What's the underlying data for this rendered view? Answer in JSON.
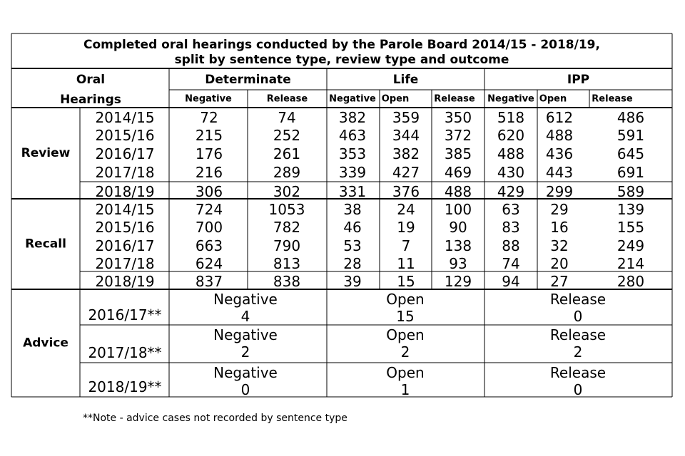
{
  "chart_data": {
    "type": "table",
    "title": [
      "Completed oral hearings conducted by the Parole Board 2014/15 - 2018/19,",
      "split by sentence type, review type and outcome"
    ],
    "corner_header": [
      "Oral",
      "Hearings"
    ],
    "sentence_types": [
      {
        "name": "Determinate",
        "outcomes": [
          "Negative",
          "Release"
        ]
      },
      {
        "name": "Life",
        "outcomes": [
          "Negative",
          "Open",
          "Release"
        ]
      },
      {
        "name": "IPP",
        "outcomes": [
          "Negative",
          "Open",
          "Release"
        ]
      }
    ],
    "groups": [
      {
        "name": "Review",
        "rows": [
          {
            "year": "2014/15",
            "values": [
              72,
              74,
              382,
              359,
              350,
              518,
              612,
              486
            ]
          },
          {
            "year": "2015/16",
            "values": [
              215,
              252,
              463,
              344,
              372,
              620,
              488,
              591
            ]
          },
          {
            "year": "2016/17",
            "values": [
              176,
              261,
              353,
              382,
              385,
              488,
              436,
              645
            ]
          },
          {
            "year": "2017/18",
            "values": [
              216,
              289,
              339,
              427,
              469,
              430,
              443,
              691
            ]
          },
          {
            "year": "2018/19",
            "values": [
              306,
              302,
              331,
              376,
              488,
              429,
              299,
              589
            ]
          }
        ]
      },
      {
        "name": "Recall",
        "rows": [
          {
            "year": "2014/15",
            "values": [
              724,
              1053,
              38,
              24,
              100,
              63,
              29,
              139
            ]
          },
          {
            "year": "2015/16",
            "values": [
              700,
              782,
              46,
              19,
              90,
              83,
              16,
              155
            ]
          },
          {
            "year": "2016/17",
            "values": [
              663,
              790,
              53,
              7,
              138,
              88,
              32,
              249
            ]
          },
          {
            "year": "2017/18",
            "values": [
              624,
              813,
              28,
              11,
              93,
              74,
              20,
              214
            ]
          },
          {
            "year": "2018/19",
            "values": [
              837,
              838,
              39,
              15,
              129,
              94,
              27,
              280
            ]
          }
        ]
      }
    ],
    "advice": {
      "name": "Advice",
      "rows": [
        {
          "year": "2016/17**",
          "cells": [
            {
              "label": "Negative",
              "value": 4
            },
            {
              "label": "Open",
              "value": 15
            },
            {
              "label": "Release",
              "value": 0
            }
          ]
        },
        {
          "year": "2017/18**",
          "cells": [
            {
              "label": "Negative",
              "value": 2
            },
            {
              "label": "Open",
              "value": 2
            },
            {
              "label": "Release",
              "value": 2
            }
          ]
        },
        {
          "year": "2018/19**",
          "cells": [
            {
              "label": "Negative",
              "value": 0
            },
            {
              "label": "Open",
              "value": 1
            },
            {
              "label": "Release",
              "value": 0
            }
          ]
        }
      ]
    }
  },
  "footnote": "**Note - advice cases not recorded by sentence type"
}
